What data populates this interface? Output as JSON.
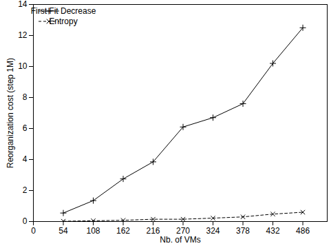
{
  "chart_data": {
    "type": "line",
    "x_label": "Nb. of VMs",
    "y_label": "Reorganization cost (step 1M)",
    "x": [
      54,
      108,
      162,
      216,
      270,
      324,
      378,
      432,
      486
    ],
    "series": [
      {
        "name": "First Fit Decrease",
        "color": "#000000",
        "marker": "plus",
        "line_style": "solid",
        "values": [
          0.55,
          1.35,
          2.75,
          3.85,
          6.1,
          6.7,
          7.6,
          10.2,
          12.5
        ]
      },
      {
        "name": "Entropy",
        "color": "#000000",
        "marker": "x",
        "line_style": "dashed",
        "values": [
          0.02,
          0.05,
          0.08,
          0.15,
          0.15,
          0.22,
          0.3,
          0.48,
          0.6
        ]
      }
    ],
    "xlim": [
      0,
      530
    ],
    "xticks": [
      0,
      54,
      108,
      162,
      216,
      270,
      324,
      378,
      432,
      486
    ],
    "ylim": [
      0,
      14
    ],
    "yticks": [
      0,
      2,
      4,
      6,
      8,
      10,
      12,
      14
    ],
    "legend": "top-left",
    "grid": false
  }
}
